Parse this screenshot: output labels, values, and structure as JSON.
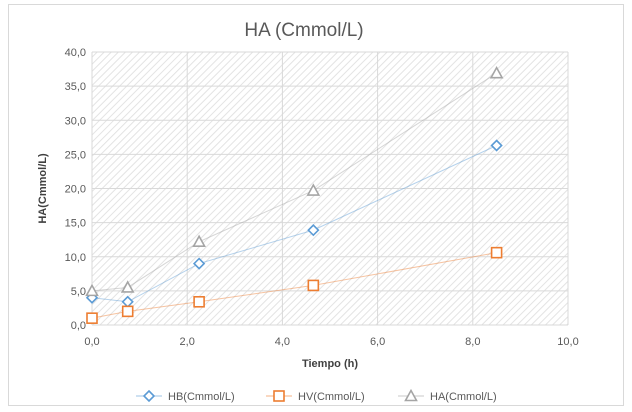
{
  "chart_data": {
    "type": "scatter",
    "title": "HA (Cmmol/L)",
    "xlabel": "Tiempo (h)",
    "ylabel": "HA(Cmmol/L)",
    "xlim": [
      0,
      10
    ],
    "ylim": [
      0,
      40
    ],
    "x_ticks": [
      "0,0",
      "2,0",
      "4,0",
      "6,0",
      "8,0",
      "10,0"
    ],
    "y_ticks": [
      "0,0",
      "5,0",
      "10,0",
      "15,0",
      "20,0",
      "25,0",
      "30,0",
      "35,0",
      "40,0"
    ],
    "grid": true,
    "legend_position": "bottom",
    "series": [
      {
        "name": "HB(Cmmol/L)",
        "marker": "diamond",
        "color": "#5b9bd5",
        "x": [
          0,
          0.75,
          2.25,
          4.65,
          8.5
        ],
        "y": [
          4.0,
          3.4,
          9.0,
          13.9,
          26.3
        ]
      },
      {
        "name": "HV(Cmmol/L)",
        "marker": "square",
        "color": "#ed7d31",
        "x": [
          0,
          0.75,
          2.25,
          4.65,
          8.5
        ],
        "y": [
          1.0,
          2.0,
          3.4,
          5.8,
          10.6
        ]
      },
      {
        "name": "HA(Cmmol/L)",
        "marker": "triangle",
        "color": "#a5a5a5",
        "x": [
          0,
          0.75,
          2.25,
          4.65,
          8.5
        ],
        "y": [
          5.0,
          5.5,
          12.2,
          19.7,
          36.9
        ]
      }
    ]
  }
}
